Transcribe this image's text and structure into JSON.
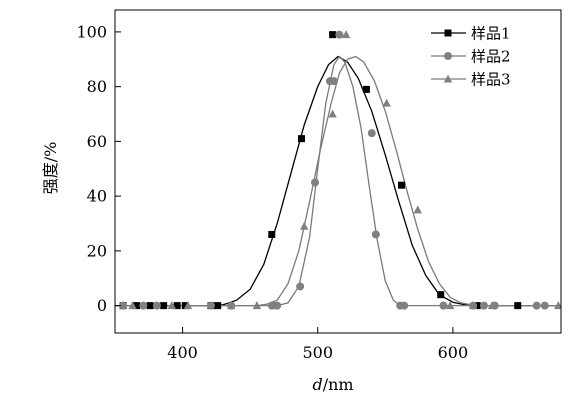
{
  "chart_data": {
    "type": "scatter",
    "xlabel": "d/nm",
    "xlabel_italic": "d",
    "xlabel_rest": "/nm",
    "ylabel": "强度/%",
    "xlim": [
      350,
      680
    ],
    "ylim": [
      -10,
      108
    ],
    "xticks": [
      400,
      500,
      600
    ],
    "yticks": [
      0,
      20,
      40,
      60,
      80,
      100
    ],
    "grid": false,
    "legend_position": "top-right",
    "series": [
      {
        "name": "样品1",
        "marker": "square",
        "color": "#000000",
        "points": [
          [
            356,
            0
          ],
          [
            366,
            0
          ],
          [
            376,
            0
          ],
          [
            386,
            0
          ],
          [
            396,
            0
          ],
          [
            402,
            0
          ],
          [
            421,
            0
          ],
          [
            426,
            0
          ],
          [
            466,
            26
          ],
          [
            488,
            61
          ],
          [
            511,
            99
          ],
          [
            536,
            79
          ],
          [
            562,
            44
          ],
          [
            591,
            4
          ],
          [
            618,
            0
          ],
          [
            648,
            0
          ]
        ],
        "curve": [
          [
            350,
            0
          ],
          [
            420,
            0
          ],
          [
            430,
            0.3
          ],
          [
            440,
            2
          ],
          [
            450,
            6
          ],
          [
            460,
            15
          ],
          [
            470,
            30
          ],
          [
            480,
            48
          ],
          [
            490,
            66
          ],
          [
            500,
            80
          ],
          [
            508,
            88
          ],
          [
            515,
            91
          ],
          [
            522,
            89
          ],
          [
            530,
            83
          ],
          [
            540,
            71
          ],
          [
            550,
            55
          ],
          [
            560,
            38
          ],
          [
            570,
            22
          ],
          [
            580,
            11
          ],
          [
            590,
            4
          ],
          [
            600,
            1.2
          ],
          [
            610,
            0.2
          ],
          [
            620,
            0
          ],
          [
            680,
            0
          ]
        ]
      },
      {
        "name": "样品2",
        "marker": "circle",
        "color": "#808080",
        "points": [
          [
            356,
            0
          ],
          [
            371,
            0
          ],
          [
            381,
            0
          ],
          [
            421,
            0
          ],
          [
            436,
            0
          ],
          [
            466,
            0
          ],
          [
            470,
            0
          ],
          [
            487,
            7
          ],
          [
            498,
            45
          ],
          [
            509,
            82
          ],
          [
            512,
            82
          ],
          [
            516,
            99
          ],
          [
            540,
            63
          ],
          [
            543,
            26
          ],
          [
            561,
            0
          ],
          [
            564,
            0
          ],
          [
            593,
            0
          ],
          [
            615,
            0
          ],
          [
            623,
            0
          ],
          [
            631,
            0
          ],
          [
            662,
            0
          ],
          [
            668,
            0
          ]
        ],
        "curve": [
          [
            350,
            0
          ],
          [
            470,
            0
          ],
          [
            478,
            1
          ],
          [
            486,
            7
          ],
          [
            494,
            25
          ],
          [
            500,
            50
          ],
          [
            506,
            74
          ],
          [
            512,
            88
          ],
          [
            516,
            91
          ],
          [
            520,
            89
          ],
          [
            526,
            80
          ],
          [
            532,
            65
          ],
          [
            538,
            44
          ],
          [
            544,
            24
          ],
          [
            550,
            9
          ],
          [
            556,
            2
          ],
          [
            560,
            0.3
          ],
          [
            566,
            0
          ],
          [
            680,
            0
          ]
        ]
      },
      {
        "name": "样品3",
        "marker": "triangle",
        "color": "#808080",
        "points": [
          [
            363,
            0
          ],
          [
            392,
            0
          ],
          [
            404,
            0
          ],
          [
            436,
            0
          ],
          [
            455,
            0
          ],
          [
            468,
            0
          ],
          [
            490,
            29
          ],
          [
            511,
            70
          ],
          [
            521,
            99
          ],
          [
            551,
            74
          ],
          [
            574,
            35
          ],
          [
            598,
            0
          ],
          [
            615,
            0
          ],
          [
            629,
            0
          ],
          [
            678,
            0
          ]
        ],
        "curve": [
          [
            350,
            0
          ],
          [
            455,
            0
          ],
          [
            462,
            0.5
          ],
          [
            470,
            2
          ],
          [
            478,
            8
          ],
          [
            486,
            20
          ],
          [
            494,
            38
          ],
          [
            502,
            57
          ],
          [
            510,
            74
          ],
          [
            516,
            85
          ],
          [
            522,
            90
          ],
          [
            528,
            91
          ],
          [
            534,
            89
          ],
          [
            542,
            82
          ],
          [
            550,
            71
          ],
          [
            558,
            57
          ],
          [
            566,
            42
          ],
          [
            574,
            28
          ],
          [
            582,
            16
          ],
          [
            590,
            8
          ],
          [
            598,
            3
          ],
          [
            606,
            1
          ],
          [
            614,
            0.3
          ],
          [
            622,
            0
          ],
          [
            680,
            0
          ]
        ]
      }
    ]
  }
}
